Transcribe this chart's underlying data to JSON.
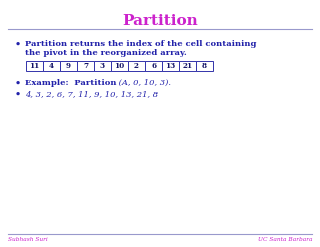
{
  "title": "Partition",
  "title_color": "#cc22cc",
  "title_fontsize": 11,
  "slide_bg": "#ffffff",
  "header_line_color": "#9999cc",
  "bullet_color": "#2222aa",
  "bullet_text_color": "#2222aa",
  "array_values": [
    "11",
    "4",
    "9",
    "7",
    "3",
    "10",
    "2",
    "6",
    "13",
    "21",
    "8"
  ],
  "array_border_color": "#3333aa",
  "array_bg_color": "#ffffff",
  "array_text_color": "#111166",
  "bullet1_line1": "Partition returns the index of the cell containing",
  "bullet1_line2": "the pivot in the reorganized array.",
  "bullet2_bold": "Example:  Partition",
  "bullet2_italic": " (A, 0, 10, 3).",
  "bullet3_text": "4, 3, 2, 6, 7, 11, 9, 10, 13, 21, 8",
  "footer_left": "Subhash Suri",
  "footer_right": "UC Santa Barbara",
  "footer_color": "#cc22cc",
  "footer_line_color": "#9999cc"
}
